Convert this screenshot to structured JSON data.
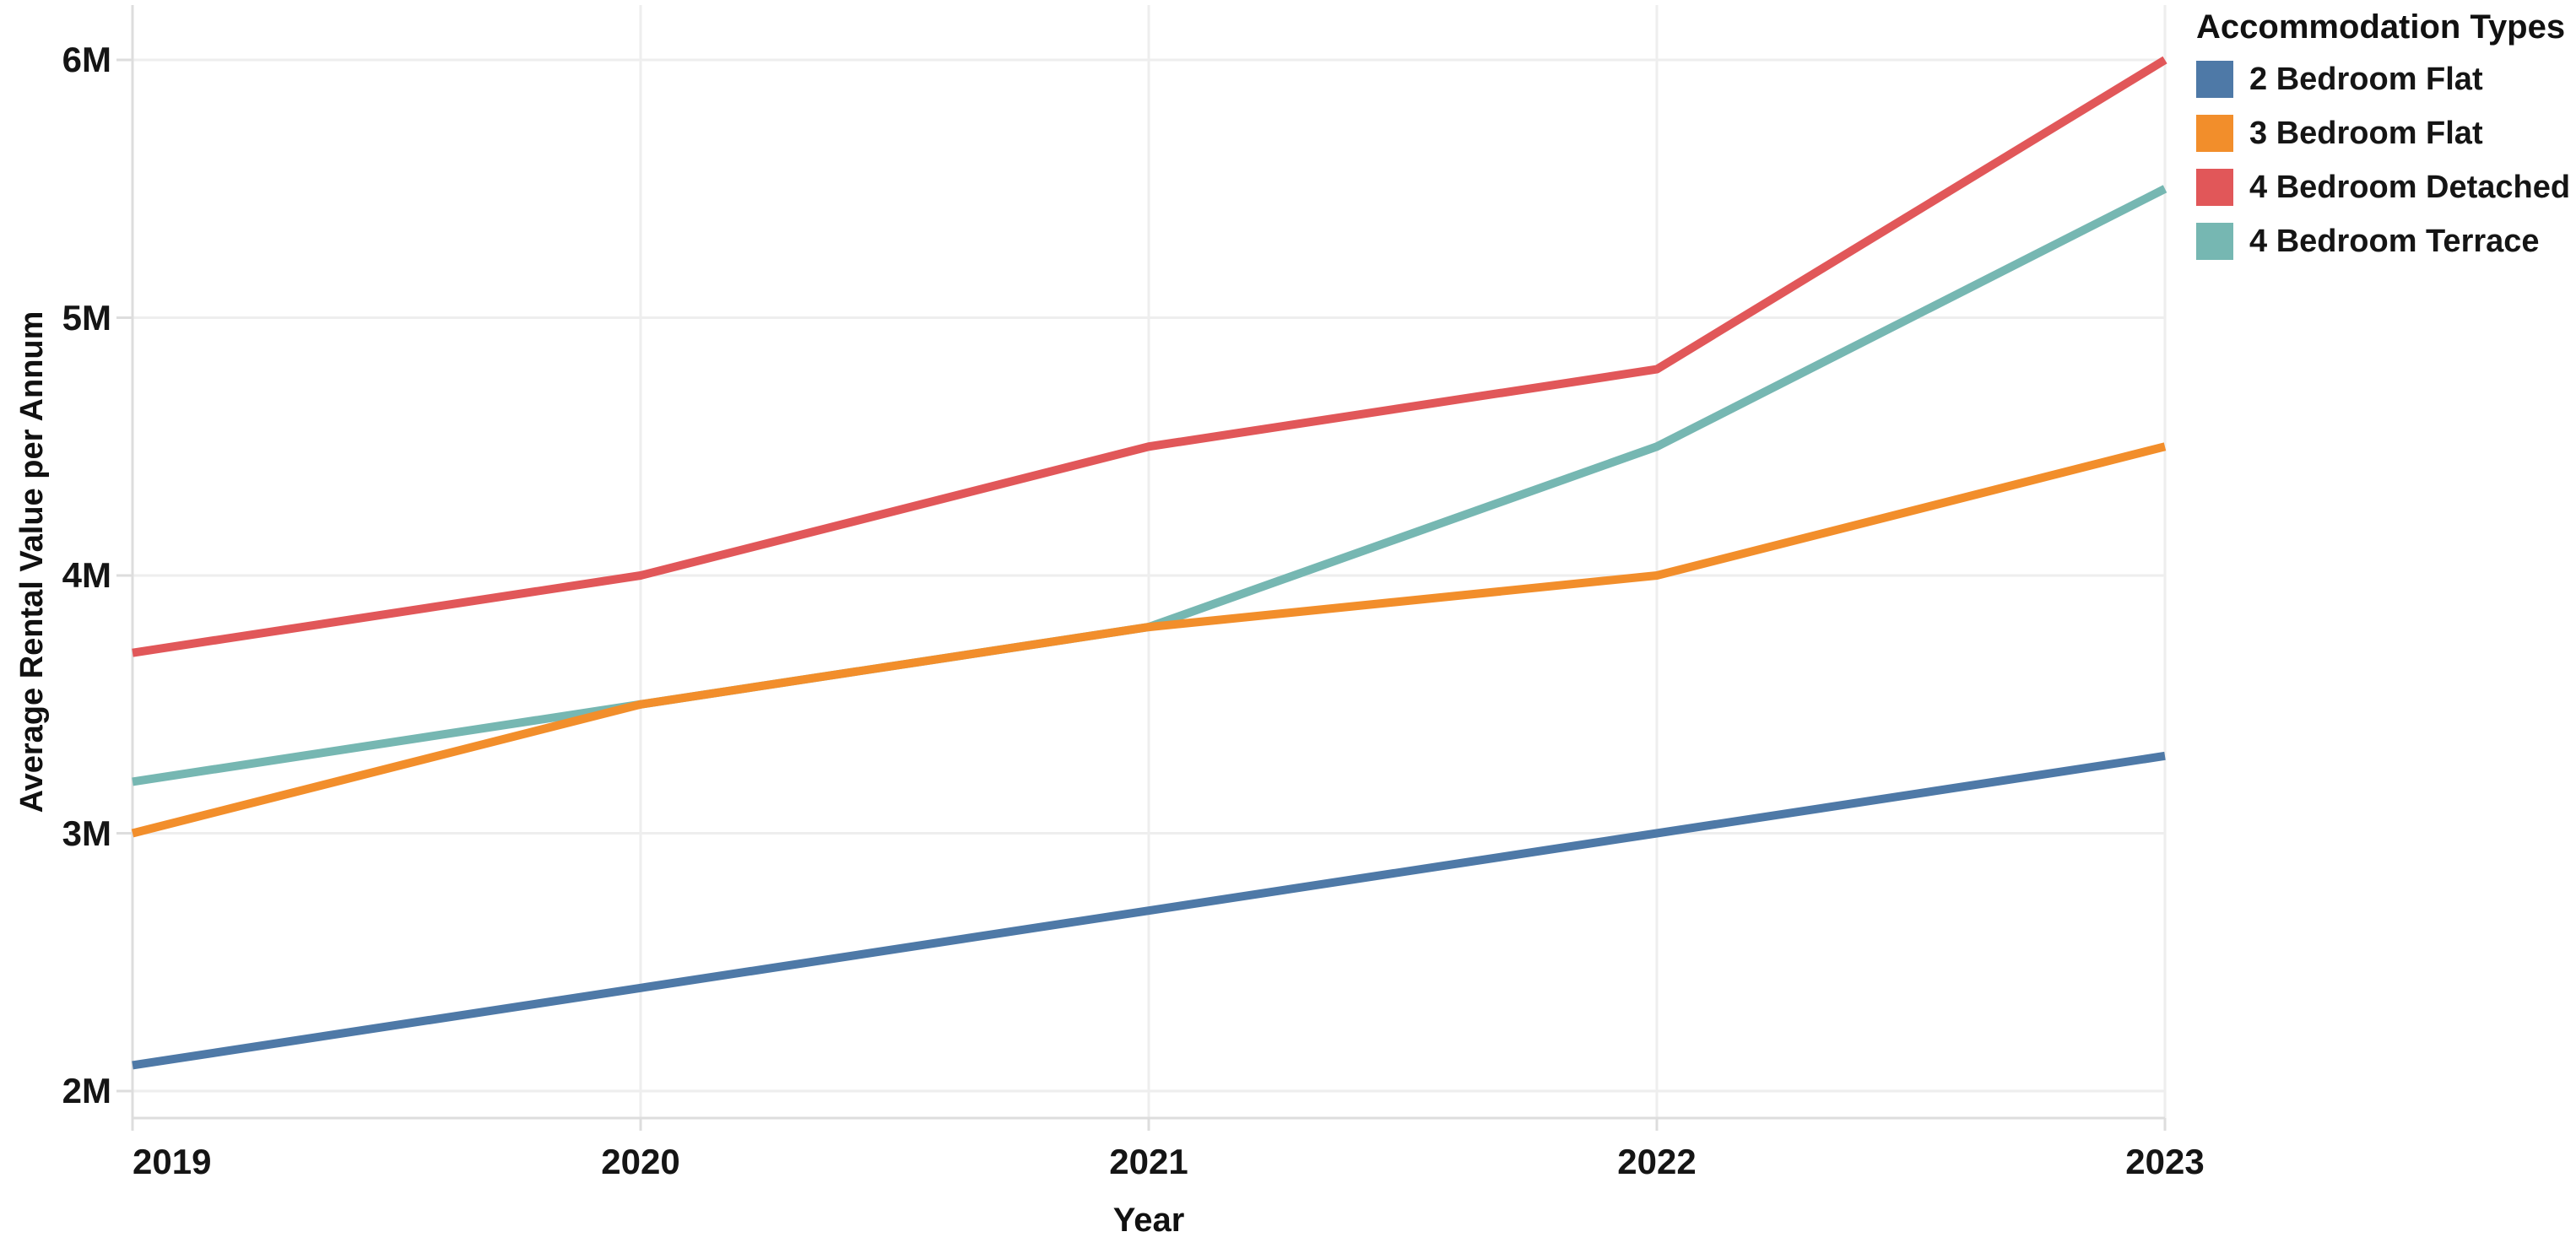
{
  "chart_data": {
    "type": "line",
    "title": "",
    "xlabel": "Year",
    "ylabel": "Average Rental Value per Annum",
    "legend_title": "Accommodation Types",
    "legend_position": "top-right-outside",
    "grid": true,
    "x": [
      "2019",
      "2020",
      "2021",
      "2022",
      "2023"
    ],
    "value_unit": "millions",
    "y_axis": {
      "tick_labels": [
        "2M",
        "3M",
        "4M",
        "5M",
        "6M"
      ],
      "tick_values": [
        2,
        3,
        4,
        5,
        6
      ],
      "range": [
        1.9,
        6.22
      ]
    },
    "series": [
      {
        "name": "2 Bedroom Flat",
        "color": "#4e79a7",
        "values": [
          2.1,
          2.4,
          2.7,
          3.0,
          3.3
        ]
      },
      {
        "name": "3 Bedroom Flat",
        "color": "#f28e2b",
        "values": [
          3.0,
          3.5,
          3.8,
          4.0,
          4.5
        ]
      },
      {
        "name": "4 Bedroom Detached",
        "color": "#e15759",
        "values": [
          3.7,
          4.0,
          4.5,
          4.8,
          6.0
        ]
      },
      {
        "name": "4 Bedroom Terrace",
        "color": "#76b7b2",
        "values": [
          3.2,
          3.5,
          3.8,
          4.5,
          5.5
        ]
      }
    ],
    "style_colors": {
      "gridline": "#eeeeee",
      "axis_line": "#dddddd",
      "tick_mark": "#dddddd",
      "text": "#151515",
      "background": "#ffffff"
    }
  }
}
